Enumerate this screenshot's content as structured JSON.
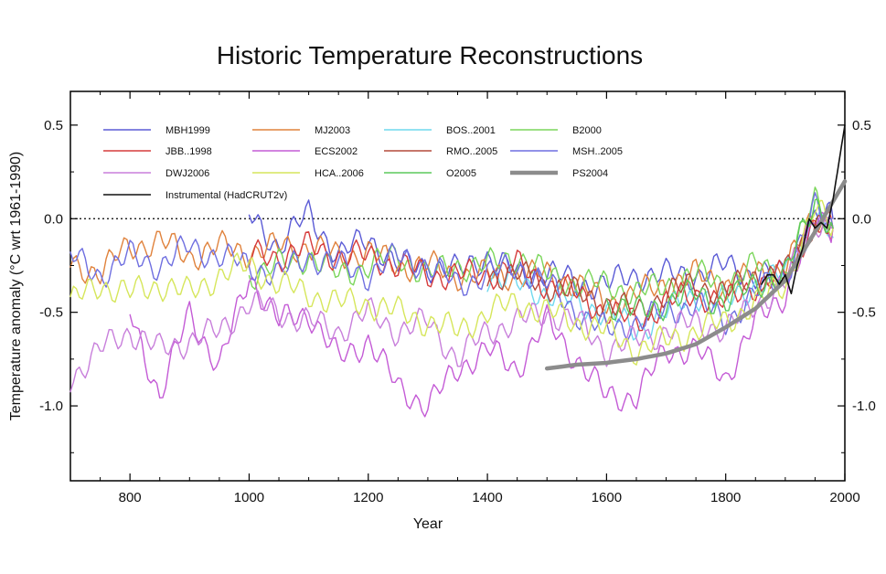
{
  "chart_data": {
    "type": "line",
    "title": "Historic Temperature Reconstructions",
    "xlabel": "Year",
    "ylabel": "Temperature anomaly  (°C wrt 1961-1990)",
    "xlim": [
      700,
      2000
    ],
    "ylim": [
      -1.4,
      0.68
    ],
    "x_ticks": [
      800,
      1000,
      1200,
      1400,
      1600,
      1800,
      2000
    ],
    "y_ticks": [
      0.5,
      0.0,
      -0.5,
      -1.0
    ],
    "y_tick_labels": [
      "0.5",
      "0.0",
      "-0.5",
      "-1.0"
    ],
    "zero_line": true,
    "legend_position": "top-left",
    "series": [
      {
        "name": "MBH1999",
        "color": "#5b5bd6",
        "x": [
          1000,
          1050,
          1100,
          1150,
          1200,
          1250,
          1300,
          1350,
          1400,
          1450,
          1500,
          1550,
          1600,
          1650,
          1700,
          1750,
          1800,
          1850,
          1900,
          1950,
          1980
        ],
        "y": [
          0.02,
          -0.15,
          0.03,
          -0.2,
          -0.1,
          -0.25,
          -0.25,
          -0.28,
          -0.2,
          -0.3,
          -0.28,
          -0.35,
          -0.35,
          -0.3,
          -0.3,
          -0.3,
          -0.25,
          -0.3,
          -0.3,
          0.0,
          0.0
        ]
      },
      {
        "name": "MJ2003",
        "color": "#e0823c",
        "x": [
          700,
          750,
          800,
          850,
          900,
          950,
          1000,
          1050,
          1100,
          1150,
          1200,
          1250,
          1300,
          1350,
          1400,
          1450,
          1500,
          1550,
          1600,
          1650,
          1700,
          1750,
          1800,
          1850,
          1900,
          1950,
          1980
        ],
        "y": [
          -0.25,
          -0.28,
          -0.15,
          -0.12,
          -0.2,
          -0.15,
          -0.18,
          -0.15,
          -0.15,
          -0.2,
          -0.18,
          -0.25,
          -0.25,
          -0.3,
          -0.3,
          -0.3,
          -0.3,
          -0.35,
          -0.45,
          -0.4,
          -0.35,
          -0.3,
          -0.35,
          -0.3,
          -0.25,
          0.0,
          -0.05
        ]
      },
      {
        "name": "BOS..2001",
        "color": "#6fd8ee",
        "x": [
          1400,
          1450,
          1500,
          1550,
          1600,
          1650,
          1700,
          1750,
          1800,
          1850,
          1900,
          1950,
          1980
        ],
        "y": [
          -0.3,
          -0.35,
          -0.4,
          -0.45,
          -0.5,
          -0.6,
          -0.5,
          -0.4,
          -0.45,
          -0.35,
          -0.3,
          0.0,
          -0.1
        ]
      },
      {
        "name": "B2000",
        "color": "#7bd65b",
        "x": [
          1000,
          1050,
          1100,
          1150,
          1200,
          1250,
          1300,
          1350,
          1400,
          1450,
          1500,
          1550,
          1600,
          1650,
          1700,
          1750,
          1800,
          1850,
          1900,
          1950,
          1980
        ],
        "y": [
          -0.3,
          -0.25,
          -0.2,
          -0.3,
          -0.25,
          -0.2,
          -0.3,
          -0.25,
          -0.25,
          -0.2,
          -0.3,
          -0.35,
          -0.35,
          -0.4,
          -0.35,
          -0.3,
          -0.35,
          -0.25,
          -0.3,
          0.1,
          -0.05
        ]
      },
      {
        "name": "JBB..1998",
        "color": "#d63c3c",
        "x": [
          1000,
          1050,
          1100,
          1150,
          1200,
          1250,
          1300,
          1350,
          1400,
          1450,
          1500,
          1550,
          1600,
          1650,
          1700,
          1750,
          1800,
          1850,
          1900,
          1950,
          1980
        ],
        "y": [
          -0.2,
          -0.2,
          -0.15,
          -0.2,
          -0.2,
          -0.25,
          -0.3,
          -0.3,
          -0.3,
          -0.25,
          -0.35,
          -0.4,
          -0.5,
          -0.55,
          -0.45,
          -0.4,
          -0.45,
          -0.35,
          -0.3,
          0.0,
          -0.05
        ]
      },
      {
        "name": "ECS2002",
        "color": "#c45bd6",
        "x": [
          800,
          850,
          900,
          950,
          1000,
          1050,
          1100,
          1150,
          1200,
          1250,
          1300,
          1350,
          1400,
          1450,
          1500,
          1550,
          1600,
          1650,
          1700,
          1750,
          1800,
          1850,
          1900,
          1950,
          1980
        ],
        "y": [
          -0.5,
          -0.95,
          -0.5,
          -0.8,
          -0.3,
          -0.55,
          -0.5,
          -0.75,
          -0.65,
          -0.9,
          -1.0,
          -0.8,
          -0.7,
          -0.8,
          -0.55,
          -0.75,
          -0.95,
          -0.95,
          -0.7,
          -0.7,
          -0.85,
          -0.55,
          -0.4,
          0.0,
          -0.05
        ]
      },
      {
        "name": "RMO..2005",
        "color": "#b34a3a",
        "x": [
          1400,
          1450,
          1500,
          1550,
          1600,
          1650,
          1700,
          1750,
          1800,
          1850,
          1900,
          1950,
          1980
        ],
        "y": [
          -0.3,
          -0.3,
          -0.35,
          -0.4,
          -0.45,
          -0.5,
          -0.4,
          -0.35,
          -0.4,
          -0.3,
          -0.3,
          0.0,
          -0.05
        ]
      },
      {
        "name": "MSH..2005",
        "color": "#6f6fe0",
        "x": [
          700,
          750,
          800,
          850,
          900,
          950,
          1000,
          1050,
          1100,
          1150,
          1200,
          1250,
          1300,
          1350,
          1400,
          1450,
          1500,
          1550,
          1600,
          1650,
          1700,
          1750,
          1800,
          1850,
          1900,
          1950,
          1980
        ],
        "y": [
          -0.2,
          -0.3,
          -0.2,
          -0.25,
          -0.15,
          -0.2,
          -0.25,
          -0.3,
          -0.2,
          -0.25,
          -0.3,
          -0.2,
          -0.25,
          -0.35,
          -0.3,
          -0.25,
          -0.35,
          -0.5,
          -0.6,
          -0.55,
          -0.5,
          -0.45,
          -0.55,
          -0.4,
          -0.3,
          0.05,
          -0.05
        ]
      },
      {
        "name": "DWJ2006",
        "color": "#c87fdb",
        "x": [
          700,
          750,
          800,
          850,
          900,
          950,
          1000,
          1050,
          1100,
          1150,
          1200,
          1250,
          1300,
          1350,
          1400,
          1450,
          1500,
          1550,
          1600,
          1650,
          1700,
          1750,
          1800,
          1850,
          1900,
          1950,
          1980
        ],
        "y": [
          -0.85,
          -0.7,
          -0.6,
          -0.7,
          -0.65,
          -0.6,
          -0.45,
          -0.5,
          -0.55,
          -0.6,
          -0.5,
          -0.6,
          -0.55,
          -0.75,
          -0.6,
          -0.55,
          -0.5,
          -0.55,
          -0.7,
          -0.65,
          -0.6,
          -0.55,
          -0.6,
          -0.45,
          -0.35,
          0.0,
          -0.05
        ]
      },
      {
        "name": "HCA..2006",
        "color": "#d6e65b",
        "x": [
          700,
          750,
          800,
          850,
          900,
          950,
          1000,
          1050,
          1100,
          1150,
          1200,
          1250,
          1300,
          1350,
          1400,
          1450,
          1500,
          1550,
          1600,
          1650,
          1700,
          1750,
          1800,
          1850,
          1900,
          1950,
          1980
        ],
        "y": [
          -0.45,
          -0.35,
          -0.4,
          -0.35,
          -0.4,
          -0.3,
          -0.25,
          -0.35,
          -0.4,
          -0.45,
          -0.45,
          -0.5,
          -0.55,
          -0.6,
          -0.5,
          -0.45,
          -0.5,
          -0.55,
          -0.6,
          -0.7,
          -0.65,
          -0.6,
          -0.55,
          -0.45,
          -0.35,
          0.05,
          -0.05
        ]
      },
      {
        "name": "O2005",
        "color": "#5bc85b",
        "x": [
          1600,
          1650,
          1700,
          1750,
          1800,
          1850,
          1900,
          1950,
          1980
        ],
        "y": [
          -0.45,
          -0.5,
          -0.45,
          -0.4,
          -0.45,
          -0.35,
          -0.3,
          0.1,
          -0.05
        ]
      },
      {
        "name": "PS2004",
        "color": "#8c8c8c",
        "x": [
          1500,
          1550,
          1600,
          1650,
          1700,
          1750,
          1800,
          1850,
          1900,
          1950,
          2000
        ],
        "y": [
          -0.8,
          -0.78,
          -0.77,
          -0.75,
          -0.72,
          -0.67,
          -0.58,
          -0.48,
          -0.33,
          -0.07,
          0.2
        ]
      },
      {
        "name": "Instrumental (HadCRUT2v)",
        "color": "#111111",
        "x": [
          1860,
          1870,
          1880,
          1890,
          1900,
          1910,
          1920,
          1930,
          1940,
          1950,
          1960,
          1970,
          1980,
          1990,
          2000
        ],
        "y": [
          -0.35,
          -0.3,
          -0.3,
          -0.35,
          -0.3,
          -0.4,
          -0.25,
          -0.15,
          0.0,
          -0.05,
          -0.02,
          -0.05,
          0.1,
          0.3,
          0.5
        ]
      }
    ]
  }
}
